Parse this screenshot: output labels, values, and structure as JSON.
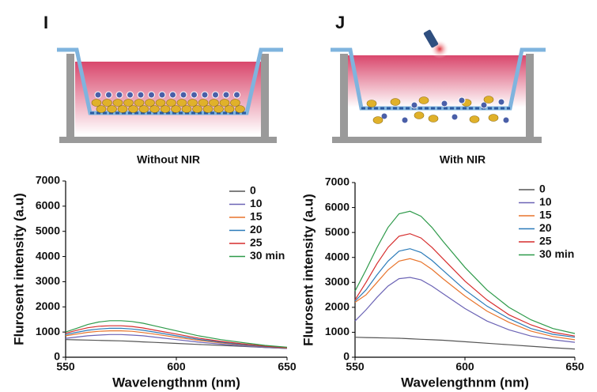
{
  "panels": [
    {
      "label": "I",
      "caption": "Without NIR"
    },
    {
      "label": "J",
      "caption": "With NIR"
    }
  ],
  "chart_data": [
    {
      "type": "line",
      "x_label": "Wavelengthnm (nm)",
      "y_label": "Flurosent intensity (a.u)",
      "x": [
        550,
        555,
        560,
        565,
        570,
        575,
        580,
        585,
        590,
        600,
        610,
        620,
        630,
        640,
        650
      ],
      "xlim": [
        550,
        650
      ],
      "xticks": [
        550,
        600,
        650
      ],
      "ylim": [
        0,
        7000
      ],
      "yticks": [
        0,
        1000,
        2000,
        3000,
        4000,
        5000,
        6000,
        7000
      ],
      "series": [
        {
          "name": "0",
          "color": "#555555",
          "values": [
            700,
            690,
            680,
            670,
            660,
            650,
            630,
            610,
            590,
            550,
            510,
            470,
            430,
            390,
            350
          ]
        },
        {
          "name": "10",
          "color": "#6b63b5",
          "values": [
            750,
            800,
            850,
            880,
            900,
            900,
            880,
            850,
            800,
            700,
            600,
            520,
            450,
            390,
            350
          ]
        },
        {
          "name": "15",
          "color": "#e8742c",
          "values": [
            850,
            920,
            990,
            1030,
            1050,
            1050,
            1030,
            980,
            920,
            790,
            670,
            570,
            480,
            410,
            360
          ]
        },
        {
          "name": "20",
          "color": "#2b7bb9",
          "values": [
            900,
            990,
            1070,
            1120,
            1150,
            1150,
            1120,
            1070,
            1000,
            850,
            710,
            600,
            500,
            420,
            370
          ]
        },
        {
          "name": "25",
          "color": "#d62d2d",
          "values": [
            950,
            1070,
            1170,
            1230,
            1250,
            1250,
            1220,
            1160,
            1080,
            920,
            760,
            630,
            530,
            440,
            380
          ]
        },
        {
          "name": "30 min",
          "color": "#2e9a4a",
          "values": [
            1000,
            1150,
            1300,
            1400,
            1450,
            1450,
            1420,
            1350,
            1250,
            1050,
            850,
            700,
            580,
            470,
            400
          ]
        }
      ]
    },
    {
      "type": "line",
      "x_label": "Wavelengthnm (nm)",
      "y_label": "Flurosent intensity (a.u)",
      "x": [
        550,
        555,
        560,
        565,
        570,
        575,
        580,
        585,
        590,
        600,
        610,
        620,
        630,
        640,
        650
      ],
      "xlim": [
        550,
        650
      ],
      "xticks": [
        550,
        600,
        650
      ],
      "ylim": [
        0,
        7000
      ],
      "yticks": [
        0,
        1000,
        2000,
        3000,
        4000,
        5000,
        6000,
        7000
      ],
      "series": [
        {
          "name": "0",
          "color": "#555555",
          "values": [
            800,
            790,
            780,
            770,
            760,
            740,
            720,
            700,
            680,
            620,
            560,
            500,
            440,
            380,
            330
          ]
        },
        {
          "name": "10",
          "color": "#6b63b5",
          "values": [
            1450,
            1900,
            2400,
            2850,
            3150,
            3200,
            3100,
            2850,
            2550,
            1950,
            1450,
            1100,
            850,
            700,
            600
          ]
        },
        {
          "name": "15",
          "color": "#e8742c",
          "values": [
            2200,
            2500,
            3000,
            3500,
            3850,
            3950,
            3820,
            3520,
            3150,
            2450,
            1850,
            1400,
            1050,
            830,
            700
          ]
        },
        {
          "name": "20",
          "color": "#2b7bb9",
          "values": [
            2250,
            2700,
            3300,
            3850,
            4250,
            4350,
            4200,
            3880,
            3480,
            2700,
            2050,
            1550,
            1150,
            920,
            800
          ]
        },
        {
          "name": "25",
          "color": "#d62d2d",
          "values": [
            2300,
            3000,
            3750,
            4400,
            4850,
            4950,
            4780,
            4400,
            3950,
            3050,
            2300,
            1700,
            1300,
            1000,
            850
          ]
        },
        {
          "name": "30 min",
          "color": "#2e9a4a",
          "values": [
            2650,
            3500,
            4400,
            5200,
            5750,
            5850,
            5650,
            5200,
            4650,
            3600,
            2700,
            2000,
            1500,
            1150,
            950
          ]
        }
      ]
    }
  ]
}
